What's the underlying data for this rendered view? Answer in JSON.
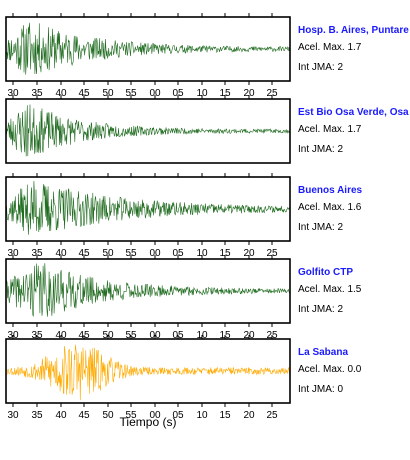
{
  "chart_data": {
    "type": "line",
    "xlabel": "Tiempo (s)",
    "x_tick_labels": [
      "30",
      "35",
      "40",
      "45",
      "50",
      "55",
      "00",
      "05",
      "10",
      "15",
      "20",
      "25"
    ],
    "info_labels": {
      "accel": "Acel. Max.",
      "jma": "Int JMA:"
    },
    "panels": [
      {
        "station": "Hosp. B. Aires, Puntare",
        "acel_max": "1.7",
        "int_jma": "2",
        "color": "#1f6b1f",
        "onset": 0.0,
        "peak_at": 0.08,
        "decay": 0.22,
        "seed": 11,
        "x_ticks_below": true
      },
      {
        "station": "Est Bio Osa Verde, Osa",
        "acel_max": "1.7",
        "int_jma": "2",
        "color": "#1f6b1f",
        "onset": 0.0,
        "peak_at": 0.07,
        "decay": 0.18,
        "seed": 23,
        "x_ticks_below": false
      },
      {
        "station": "Buenos Aires",
        "acel_max": "1.6",
        "int_jma": "2",
        "color": "#1f6b1f",
        "onset": 0.0,
        "peak_at": 0.1,
        "decay": 0.3,
        "seed": 37,
        "x_ticks_below": true
      },
      {
        "station": "Golfito CTP",
        "acel_max": "1.5",
        "int_jma": "2",
        "color": "#1f6b1f",
        "onset": 0.0,
        "peak_at": 0.12,
        "decay": 0.22,
        "seed": 41,
        "x_ticks_below": true
      },
      {
        "station": "La Sabana",
        "acel_max": "0.0",
        "int_jma": "0",
        "color": "#ffaa00",
        "onset": 0.0,
        "peak_at": 0.25,
        "decay": 0.18,
        "seed": 53,
        "x_ticks_below": true
      }
    ]
  }
}
